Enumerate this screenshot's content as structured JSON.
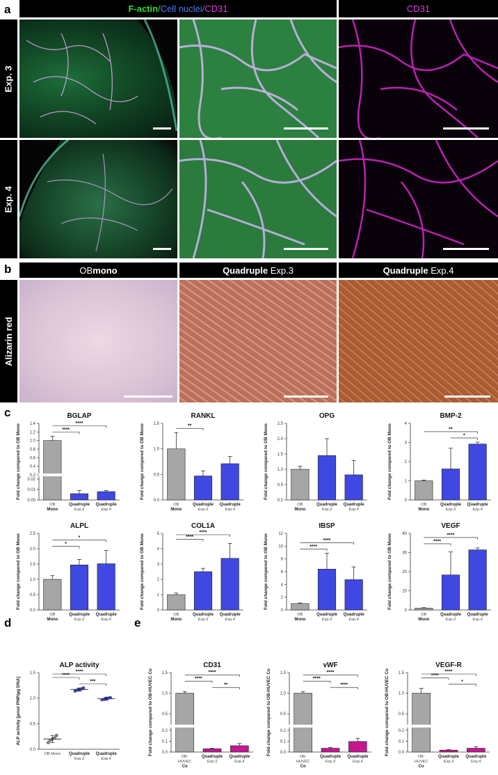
{
  "figure": {
    "panel_labels": {
      "a": "a",
      "b": "b",
      "c": "c",
      "d": "d",
      "e": "e"
    },
    "panel_a": {
      "header_left": {
        "f_actin": "F-actin",
        "sep1": "/ ",
        "nuclei": "Cell nuclei",
        "sep2": "/ ",
        "cd31": "CD31"
      },
      "header_right": "CD31",
      "rows": [
        "Exp. 3",
        "Exp. 4"
      ],
      "colors": {
        "f_actin": "#33dd33",
        "nuclei": "#3f6bff",
        "cd31": "#e040e0"
      }
    },
    "panel_b": {
      "headers": [
        {
          "bold": "",
          "normal": "OB ",
          "bold2": "mono"
        },
        {
          "bold": "Quadruple",
          "normal": " Exp.3",
          "bold2": ""
        },
        {
          "bold": "Quadruple",
          "normal": " Exp.4",
          "bold2": ""
        }
      ],
      "row_label": "Alizarin red"
    }
  },
  "chart_data": [
    {
      "id": "BGLAP",
      "type": "bar",
      "title": "BGLAP",
      "ylabel": "Fold change compared to OB Mono",
      "categories": [
        [
          "OB",
          "Mono"
        ],
        [
          "Quadruple",
          "Exp.3"
        ],
        [
          "Quadruple",
          "Exp.4"
        ]
      ],
      "values": [
        1.0,
        0.006,
        0.008
      ],
      "errors": [
        0.1,
        0.003,
        0.001
      ],
      "colors": [
        "#a6a6a6",
        "#3f48e0",
        "#3f48e0"
      ],
      "axis_break": true,
      "lower_range": [
        0,
        0.02
      ],
      "upper_range": [
        0.2,
        1.4
      ],
      "lower_ticks": [
        "0.00",
        "0.01",
        "0.02"
      ],
      "upper_ticks": [
        "0.2",
        "0.4",
        "0.6",
        "0.8",
        "1.0",
        "1.2",
        "1.4"
      ],
      "sig": [
        {
          "from": 0,
          "to": 1,
          "label": "****"
        },
        {
          "from": 0,
          "to": 2,
          "label": "****"
        }
      ]
    },
    {
      "id": "RANKL",
      "type": "bar",
      "title": "RANKL",
      "ylabel": "Fold change compared to OB Mono",
      "categories": [
        [
          "OB",
          "Mono"
        ],
        [
          "Quadruple",
          "Exp.3"
        ],
        [
          "Quadruple",
          "Exp.4"
        ]
      ],
      "values": [
        1.0,
        0.47,
        0.71
      ],
      "errors": [
        0.32,
        0.1,
        0.14
      ],
      "colors": [
        "#a6a6a6",
        "#3f48e0",
        "#3f48e0"
      ],
      "ylim": [
        0,
        1.5
      ],
      "ticks": [
        "0.0",
        "0.5",
        "1.0",
        "1.5"
      ],
      "sig": [
        {
          "from": 0,
          "to": 1,
          "label": "**"
        }
      ]
    },
    {
      "id": "OPG",
      "type": "bar",
      "title": "OPG",
      "ylabel": "Fold change compared to OB Mono",
      "categories": [
        [
          "OB",
          "Mono"
        ],
        [
          "Quadruple",
          "Exp.3"
        ],
        [
          "Quadruple",
          "Exp.4"
        ]
      ],
      "values": [
        1.0,
        1.45,
        0.82
      ],
      "errors": [
        0.1,
        0.55,
        0.47
      ],
      "colors": [
        "#a6a6a6",
        "#3f48e0",
        "#3f48e0"
      ],
      "ylim": [
        0,
        2.5
      ],
      "ticks": [
        "0.0",
        "0.5",
        "1.0",
        "1.5",
        "2.0",
        "2.5"
      ],
      "sig": []
    },
    {
      "id": "BMP-2",
      "type": "bar",
      "title": "BMP-2",
      "ylabel": "Fold change compared to OB Mono",
      "categories": [
        [
          "OB",
          "Mono"
        ],
        [
          "Quadruple",
          "Exp.3"
        ],
        [
          "Quadruple",
          "Exp.4"
        ]
      ],
      "values": [
        1.0,
        1.62,
        2.92
      ],
      "errors": [
        0.04,
        1.08,
        0.1
      ],
      "colors": [
        "#a6a6a6",
        "#3f48e0",
        "#3f48e0"
      ],
      "ylim": [
        0,
        4
      ],
      "ticks": [
        "0",
        "1",
        "2",
        "3",
        "4"
      ],
      "sig": [
        {
          "from": 1,
          "to": 2,
          "label": "*"
        },
        {
          "from": 0,
          "to": 2,
          "label": "**"
        }
      ]
    },
    {
      "id": "ALPL",
      "type": "bar",
      "title": "ALPL",
      "ylabel": "Fold change compared to OB Mono",
      "categories": [
        [
          "OB",
          "Mono"
        ],
        [
          "Quadruple",
          "Exp.3"
        ],
        [
          "Quadruple",
          "Exp.4"
        ]
      ],
      "values": [
        1.0,
        1.47,
        1.51
      ],
      "errors": [
        0.12,
        0.18,
        0.43
      ],
      "colors": [
        "#a6a6a6",
        "#3f48e0",
        "#3f48e0"
      ],
      "ylim": [
        0,
        2.5
      ],
      "ticks": [
        "0.0",
        "0.5",
        "1.0",
        "1.5",
        "2.0",
        "2.5"
      ],
      "sig": [
        {
          "from": 0,
          "to": 1,
          "label": "*"
        },
        {
          "from": 0,
          "to": 2,
          "label": "*"
        }
      ]
    },
    {
      "id": "COL1A",
      "type": "bar",
      "title": "COL1A",
      "ylabel": "Fold change compared to OB Mono",
      "categories": [
        [
          "OB",
          "Mono"
        ],
        [
          "Quadruple",
          "Exp.3"
        ],
        [
          "Quadruple",
          "Exp.4"
        ]
      ],
      "values": [
        1.0,
        2.5,
        3.37
      ],
      "errors": [
        0.1,
        0.22,
        0.98
      ],
      "colors": [
        "#a6a6a6",
        "#3f48e0",
        "#3f48e0"
      ],
      "ylim": [
        0,
        5
      ],
      "ticks": [
        "0",
        "1",
        "2",
        "3",
        "4",
        "5"
      ],
      "sig": [
        {
          "from": 0,
          "to": 1,
          "label": "****"
        },
        {
          "from": 0,
          "to": 2,
          "label": "****"
        }
      ]
    },
    {
      "id": "IBSP",
      "type": "bar",
      "title": "IBSP",
      "ylabel": "Fold change compared to OB Mono",
      "categories": [
        [
          "OB",
          "Mono"
        ],
        [
          "Quadruple",
          "Exp.3"
        ],
        [
          "Quadruple",
          "Exp.4"
        ]
      ],
      "values": [
        1.0,
        6.4,
        4.75
      ],
      "errors": [
        0.1,
        2.5,
        2.0
      ],
      "colors": [
        "#a6a6a6",
        "#3f48e0",
        "#3f48e0"
      ],
      "ylim": [
        0,
        12
      ],
      "ticks": [
        "0",
        "2",
        "4",
        "6",
        "8",
        "10",
        "12"
      ],
      "sig": [
        {
          "from": 0,
          "to": 1,
          "label": "****"
        },
        {
          "from": 0,
          "to": 2,
          "label": "****"
        }
      ]
    },
    {
      "id": "VEGF",
      "type": "bar",
      "title": "VEGF",
      "ylabel": "Fold change compared to OB Mono",
      "categories": [
        [
          "OB",
          "Mono"
        ],
        [
          "Quadruple",
          "Exp.3"
        ],
        [
          "Quadruple",
          "Exp.4"
        ]
      ],
      "values": [
        1.0,
        18.3,
        31.4
      ],
      "errors": [
        0.2,
        12.0,
        1.0
      ],
      "colors": [
        "#a6a6a6",
        "#3f48e0",
        "#3f48e0"
      ],
      "ylim": [
        0,
        40
      ],
      "ticks": [
        "0",
        "10",
        "20",
        "30",
        "40"
      ],
      "sig": [
        {
          "from": 0,
          "to": 1,
          "label": "****"
        },
        {
          "from": 0,
          "to": 2,
          "label": "****"
        }
      ]
    },
    {
      "id": "ALP",
      "type": "scatter",
      "title": "ALP activity",
      "ylabel": "ALP activity [µmol PNP/µg DNA]",
      "categories": [
        [
          "OB Mono",
          ""
        ],
        [
          "Quadruple",
          "Exp.3"
        ],
        [
          "Quadruple",
          "Exp.4"
        ]
      ],
      "values": [
        0.2,
        1.17,
        0.99
      ],
      "errors": [
        0.07,
        0.03,
        0.03
      ],
      "points": [
        [
          0.13,
          0.18,
          0.2,
          0.22,
          0.27
        ],
        [
          1.14,
          1.16,
          1.17,
          1.18,
          1.2
        ],
        [
          0.97,
          0.98,
          0.99,
          1.0,
          1.01
        ]
      ],
      "colors": [
        "#888888",
        "#3f48e0",
        "#3f48e0"
      ],
      "ylim": [
        0,
        1.5
      ],
      "ticks": [
        "0.0",
        "0.5",
        "1.0",
        "1.5"
      ],
      "sig": [
        {
          "from": 1,
          "to": 2,
          "label": "***"
        },
        {
          "from": 0,
          "to": 1,
          "label": "****"
        },
        {
          "from": 0,
          "to": 2,
          "label": "****"
        }
      ]
    },
    {
      "id": "CD31",
      "type": "bar",
      "title": "CD31",
      "ylabel": "Fold change compared to OB-HUVEC Co",
      "categories": [
        [
          "OB-",
          "HUVEC",
          "Co"
        ],
        [
          "Quadruple",
          "Exp.3"
        ],
        [
          "Quadruple",
          "Exp.4"
        ]
      ],
      "values": [
        1.0,
        0.03,
        0.058
      ],
      "errors": [
        0.04,
        0.004,
        0.02
      ],
      "colors": [
        "#a6a6a6",
        "#c21890",
        "#c21890"
      ],
      "axis_break": true,
      "lower_range": [
        0,
        0.2
      ],
      "upper_range": [
        0.2,
        1.5
      ],
      "lower_ticks": [
        "0.0",
        "0.1",
        "0.2"
      ],
      "upper_ticks": [
        "0.5",
        "1.0",
        "1.5"
      ],
      "sig": [
        {
          "from": 1,
          "to": 2,
          "label": "**"
        },
        {
          "from": 0,
          "to": 1,
          "label": "****"
        },
        {
          "from": 0,
          "to": 2,
          "label": "****"
        }
      ]
    },
    {
      "id": "vWF",
      "type": "bar",
      "title": "vWF",
      "ylabel": "Fold change compared to OB-HUVEC Co",
      "categories": [
        [
          "OB-",
          "HUVEC",
          "Co"
        ],
        [
          "Quadruple",
          "Exp.3"
        ],
        [
          "Quadruple",
          "Exp.4"
        ]
      ],
      "values": [
        1.0,
        0.035,
        0.097
      ],
      "errors": [
        0.04,
        0.008,
        0.03
      ],
      "colors": [
        "#a6a6a6",
        "#c21890",
        "#c21890"
      ],
      "axis_break": true,
      "lower_range": [
        0,
        0.2
      ],
      "upper_range": [
        0.2,
        1.5
      ],
      "lower_ticks": [
        "0.0",
        "0.1",
        "0.2"
      ],
      "upper_ticks": [
        "0.5",
        "1.0",
        "1.5"
      ],
      "sig": [
        {
          "from": 1,
          "to": 2,
          "label": "****"
        },
        {
          "from": 0,
          "to": 1,
          "label": "****"
        },
        {
          "from": 0,
          "to": 2,
          "label": "****"
        }
      ]
    },
    {
      "id": "VEGF-R",
      "type": "bar",
      "title": "VEGF-R",
      "ylabel": "Fold change compared to OB-HUVEC Co",
      "categories": [
        [
          "OB-",
          "HUVEC",
          "Co"
        ],
        [
          "Quadruple",
          "Exp.3"
        ],
        [
          "Quadruple",
          "Exp.4"
        ]
      ],
      "values": [
        1.0,
        0.018,
        0.035
      ],
      "errors": [
        0.12,
        0.004,
        0.015
      ],
      "colors": [
        "#a6a6a6",
        "#c21890",
        "#c21890"
      ],
      "axis_break": true,
      "lower_range": [
        0,
        0.2
      ],
      "upper_range": [
        0.2,
        1.5
      ],
      "lower_ticks": [
        "0.0",
        "0.1",
        "0.2"
      ],
      "upper_ticks": [
        "0.5",
        "1.0",
        "1.5"
      ],
      "sig": [
        {
          "from": 1,
          "to": 2,
          "label": "*"
        },
        {
          "from": 0,
          "to": 1,
          "label": "****"
        },
        {
          "from": 0,
          "to": 2,
          "label": "****"
        }
      ]
    }
  ]
}
